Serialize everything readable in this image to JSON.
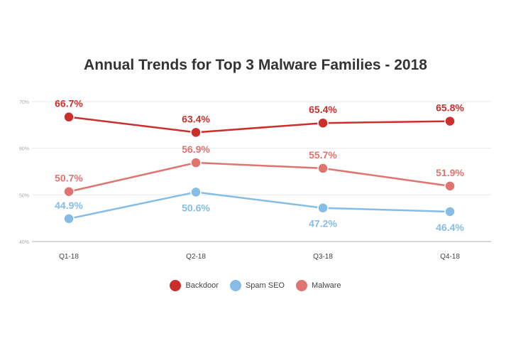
{
  "chart_data": {
    "type": "line",
    "title": "Annual Trends for Top 3 Malware Families - 2018",
    "categories": [
      "Q1-18",
      "Q2-18",
      "Q3-18",
      "Q4-18"
    ],
    "y_ticks": [
      "70%",
      "60%",
      "50%",
      "40%"
    ],
    "ylim": [
      40,
      70
    ],
    "grid": true,
    "legend_position": "bottom",
    "series": [
      {
        "name": "Backdoor",
        "color": "#c9302c",
        "values": [
          66.7,
          63.4,
          65.4,
          65.8
        ],
        "labels": [
          "66.7%",
          "63.4%",
          "65.4%",
          "65.8%"
        ],
        "label_position": "above"
      },
      {
        "name": "Spam SEO",
        "color": "#85bde6",
        "values": [
          44.9,
          50.6,
          47.2,
          46.4
        ],
        "labels": [
          "44.9%",
          "50.6%",
          "47.2%",
          "46.4%"
        ],
        "label_position": "mixed"
      },
      {
        "name": "Malware",
        "color": "#e07470",
        "values": [
          50.7,
          56.9,
          55.7,
          51.9
        ],
        "labels": [
          "50.7%",
          "56.9%",
          "55.7%",
          "51.9%"
        ],
        "label_position": "above"
      }
    ]
  },
  "legend": {
    "items": [
      {
        "label": "Backdoor",
        "color": "#c9302c"
      },
      {
        "label": "Spam SEO",
        "color": "#85bde6"
      },
      {
        "label": "Malware",
        "color": "#e07470"
      }
    ]
  }
}
